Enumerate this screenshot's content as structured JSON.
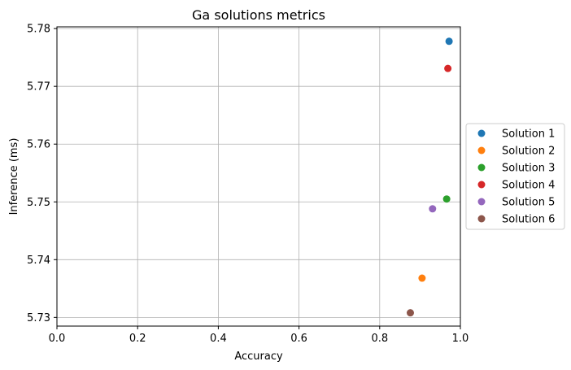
{
  "chart_data": {
    "type": "scatter",
    "title": "Ga solutions metrics",
    "xlabel": "Accuracy",
    "ylabel": "Inference (ms)",
    "xlim": [
      0.0,
      1.0
    ],
    "ylim": [
      5.7285,
      5.7803
    ],
    "xticks": [
      0.0,
      0.2,
      0.4,
      0.6,
      0.8,
      1.0
    ],
    "xtick_labels": [
      "0.0",
      "0.2",
      "0.4",
      "0.6",
      "0.8",
      "1.0"
    ],
    "yticks": [
      5.73,
      5.74,
      5.75,
      5.76,
      5.77,
      5.78
    ],
    "ytick_labels": [
      "5.73",
      "5.74",
      "5.75",
      "5.76",
      "5.77",
      "5.78"
    ],
    "grid": true,
    "legend_position": "right-outside",
    "series": [
      {
        "name": "Solution 1",
        "color": "#1f77b4",
        "points": [
          {
            "x": 0.972,
            "y": 5.7778
          }
        ]
      },
      {
        "name": "Solution 2",
        "color": "#ff7f0e",
        "points": [
          {
            "x": 0.905,
            "y": 5.7368
          }
        ]
      },
      {
        "name": "Solution 3",
        "color": "#2ca02c",
        "points": [
          {
            "x": 0.966,
            "y": 5.7505
          }
        ]
      },
      {
        "name": "Solution 4",
        "color": "#d62728",
        "points": [
          {
            "x": 0.969,
            "y": 5.7731
          }
        ]
      },
      {
        "name": "Solution 5",
        "color": "#9467bd",
        "points": [
          {
            "x": 0.931,
            "y": 5.7488
          }
        ]
      },
      {
        "name": "Solution 6",
        "color": "#8c564b",
        "points": [
          {
            "x": 0.876,
            "y": 5.7308
          }
        ]
      }
    ]
  }
}
